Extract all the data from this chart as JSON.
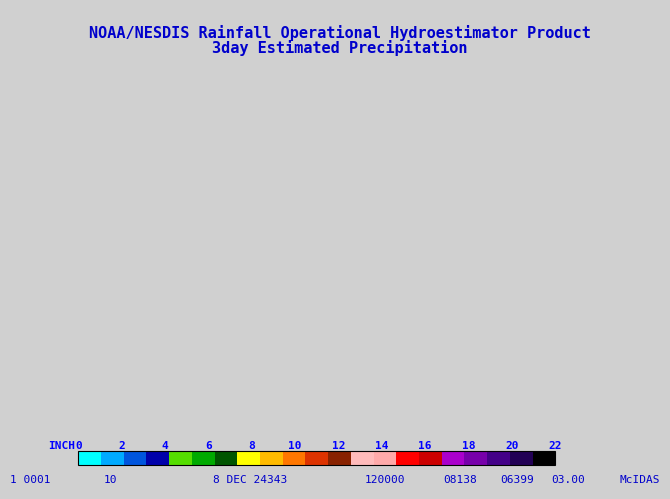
{
  "title_line1": "NOAA/NESDIS Rainfall Operational Hydroestimator Product",
  "title_line2": "3day Estimated Precipitation",
  "title_color": "#0000cc",
  "title_fontsize": 11,
  "bg_color": "#d0d0d0",
  "map_bg": "#ffffff",
  "colorbar_label": "INCH",
  "colorbar_ticks": [
    "0",
    "2",
    "4",
    "6",
    "8",
    "10",
    "12",
    "14",
    "16",
    "18",
    "20",
    "22"
  ],
  "colorbar_colors": [
    "#00ffff",
    "#00aaff",
    "#0055dd",
    "#0000aa",
    "#55dd00",
    "#00aa00",
    "#005500",
    "#ffff00",
    "#ffbb00",
    "#ff7700",
    "#dd3300",
    "#882200",
    "#ffbbbb",
    "#ffaaaa",
    "#ff0000",
    "#cc0000",
    "#aa00cc",
    "#7700aa",
    "#440088",
    "#220055",
    "#000000"
  ],
  "footer_parts": [
    "1 0001",
    "10",
    "8 DEC 24343",
    "120000",
    "08138",
    "06399",
    "03.00",
    "McIDAS"
  ],
  "footer_color": "#0000cc",
  "footer_fontsize": 8
}
